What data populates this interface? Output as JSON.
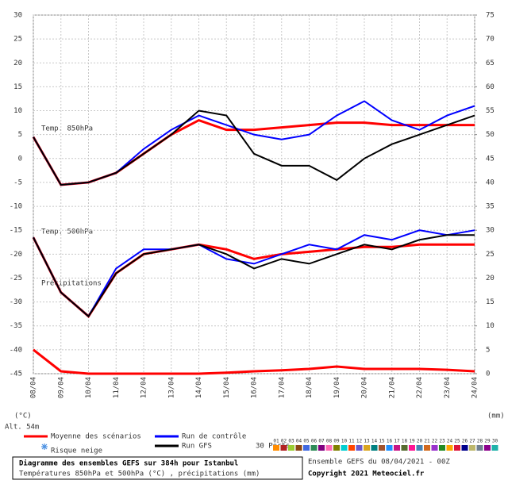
{
  "chart_data": {
    "type": "line",
    "categories": [
      "08/04",
      "09/04",
      "10/04",
      "11/04",
      "12/04",
      "13/04",
      "14/04",
      "15/04",
      "16/04",
      "17/04",
      "18/04",
      "19/04",
      "20/04",
      "21/04",
      "22/04",
      "23/04",
      "24/04"
    ],
    "ylim": [
      -45,
      30
    ],
    "yticks": [
      -45,
      -40,
      -35,
      -30,
      -25,
      -20,
      -15,
      -10,
      -5,
      0,
      5,
      10,
      15,
      20,
      25,
      30
    ],
    "y2lim": [
      0,
      75
    ],
    "y2ticks": [
      0,
      5,
      10,
      15,
      20,
      25,
      30,
      35,
      40,
      45,
      50,
      55,
      60,
      65,
      70,
      75
    ],
    "grid": true,
    "y_unit": "(°C)",
    "y2_unit": "(mm)",
    "altitude": "Alt. 54m",
    "panel_labels": [
      "Temp. 850hPa",
      "Temp. 500hPa",
      "Précipitations"
    ],
    "series": [
      {
        "name": "Moyenne des scénarios",
        "color": "#ff0000",
        "values": [
          4.5,
          -5.5,
          -5,
          -3,
          1,
          5,
          8,
          6,
          6,
          6.5,
          7,
          7.5,
          7.5,
          7,
          7,
          7,
          7
        ]
      },
      {
        "name": "Run de contrôle",
        "color": "#0000ff",
        "values": [
          4.5,
          -5.5,
          -5,
          -3,
          2,
          6,
          9,
          7,
          5,
          4,
          5,
          9,
          12,
          8,
          6,
          9,
          11
        ]
      },
      {
        "name": "Run GFS",
        "color": "#000000",
        "values": [
          4.5,
          -5.5,
          -5,
          -3,
          1,
          5,
          10,
          9,
          1,
          -1.5,
          -1.5,
          -4.5,
          0,
          3,
          5,
          7,
          9
        ]
      },
      {
        "name": "Moyenne des scénarios",
        "color": "#ff0000",
        "values": [
          -16.5,
          -28,
          -33,
          -24,
          -20,
          -19,
          -18,
          -19,
          -21,
          -20,
          -19.5,
          -19,
          -18.5,
          -18.5,
          -18,
          -18,
          -18
        ]
      },
      {
        "name": "Run de contrôle",
        "color": "#0000ff",
        "values": [
          -16.5,
          -28,
          -33,
          -23,
          -19,
          -19,
          -18,
          -21,
          -22,
          -20,
          -18,
          -19,
          -16,
          -17,
          -15,
          -16,
          -15
        ]
      },
      {
        "name": "Run GFS",
        "color": "#000000",
        "values": [
          -16.5,
          -28,
          -33,
          -24,
          -20,
          -19,
          -18,
          -20,
          -23,
          -21,
          -22,
          -20,
          -18,
          -19,
          -17,
          -16,
          -16
        ]
      },
      {
        "name": "Moyenne des scénarios",
        "color": "#ff0000",
        "axis": "y2",
        "values": [
          5,
          0.5,
          0,
          0,
          0,
          0,
          0,
          0.2,
          0.5,
          0.7,
          1,
          1.5,
          1,
          1,
          1,
          0.8,
          0.5
        ]
      }
    ],
    "snow_label": "Risque neige",
    "perturbations_label": "30 Perts.",
    "perturbations": [
      {
        "name": "01",
        "color": "#ff8c00"
      },
      {
        "name": "02",
        "color": "#b22222"
      },
      {
        "name": "03",
        "color": "#9acd32"
      },
      {
        "name": "04",
        "color": "#8b4513"
      },
      {
        "name": "05",
        "color": "#4169e1"
      },
      {
        "name": "06",
        "color": "#2e8b57"
      },
      {
        "name": "07",
        "color": "#800080"
      },
      {
        "name": "08",
        "color": "#ff69b4"
      },
      {
        "name": "09",
        "color": "#808000"
      },
      {
        "name": "10",
        "color": "#00ced1"
      },
      {
        "name": "11",
        "color": "#ff4500"
      },
      {
        "name": "12",
        "color": "#6a5acd"
      },
      {
        "name": "13",
        "color": "#daa520"
      },
      {
        "name": "14",
        "color": "#008080"
      },
      {
        "name": "15",
        "color": "#a0522d"
      },
      {
        "name": "16",
        "color": "#1e90ff"
      },
      {
        "name": "17",
        "color": "#c71585"
      },
      {
        "name": "18",
        "color": "#556b2f"
      },
      {
        "name": "19",
        "color": "#ff1493"
      },
      {
        "name": "20",
        "color": "#4682b4"
      },
      {
        "name": "21",
        "color": "#d2691e"
      },
      {
        "name": "22",
        "color": "#9932cc"
      },
      {
        "name": "23",
        "color": "#228b22"
      },
      {
        "name": "24",
        "color": "#ffa500"
      },
      {
        "name": "25",
        "color": "#dc143c"
      },
      {
        "name": "26",
        "color": "#00008b"
      },
      {
        "name": "27",
        "color": "#bdb76b"
      },
      {
        "name": "28",
        "color": "#708090"
      },
      {
        "name": "29",
        "color": "#8b008b"
      },
      {
        "name": "30",
        "color": "#20b2aa"
      }
    ],
    "footer": {
      "title": "Diagramme des ensembles GEFS sur 384h pour Istanbul",
      "subtitle": "Températures 850hPa et 500hPa (°C) , précipitations (mm)",
      "run": "Ensemble GEFS du 08/04/2021 - 00Z",
      "copyright": "Copyright 2021 Meteociel.fr"
    }
  }
}
